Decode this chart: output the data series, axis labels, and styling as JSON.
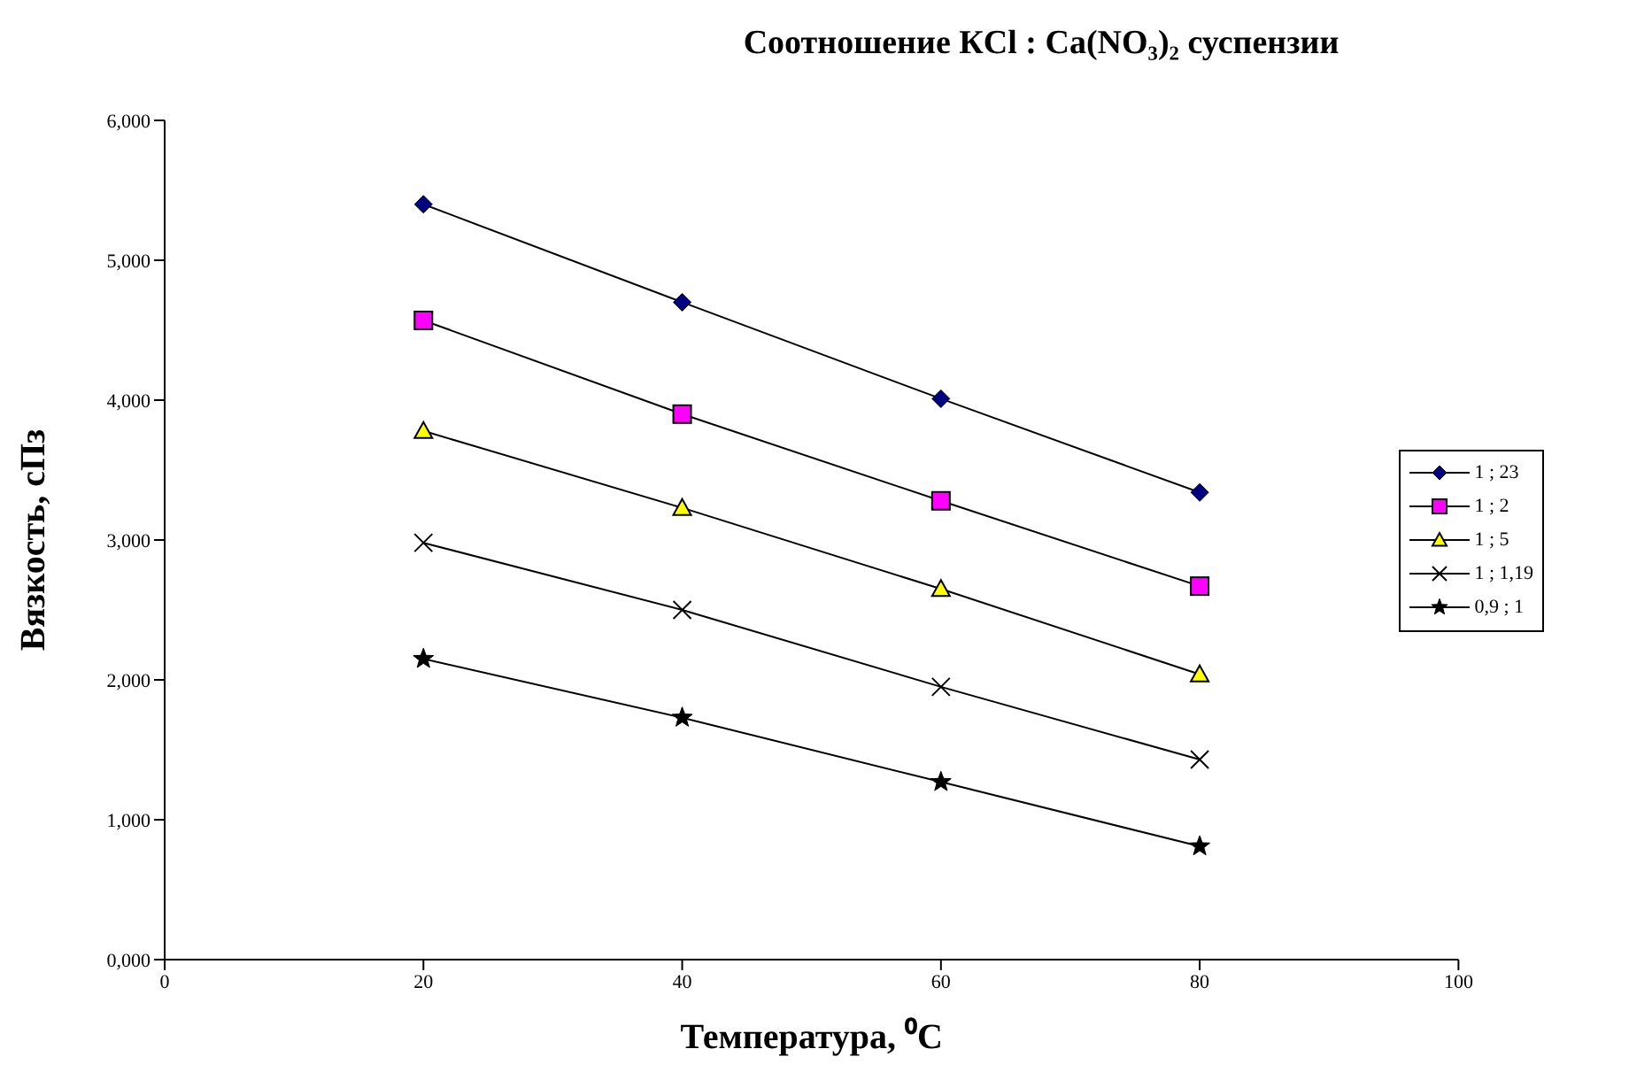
{
  "chart_data": {
    "type": "line",
    "title": "Соотношение КCl : Ca(NO₃)₂ суспензии",
    "xlabel": "Температура, ⁰C",
    "ylabel": "Вязкость, сПз",
    "x": [
      20,
      40,
      60,
      80
    ],
    "series": [
      {
        "name": "1 ; 23",
        "color": "#000080",
        "marker": "diamond",
        "values": [
          5.4,
          4.7,
          4.01,
          3.34
        ]
      },
      {
        "name": "1 ; 2",
        "color": "#ff00ff",
        "marker": "square",
        "values": [
          4.57,
          3.9,
          3.28,
          2.67
        ]
      },
      {
        "name": "1 ; 5",
        "color": "#ffff00",
        "marker": "triangle",
        "values": [
          3.78,
          3.23,
          2.65,
          2.04
        ]
      },
      {
        "name": "1 ; 1,19",
        "color": "#000000",
        "marker": "cross",
        "values": [
          2.98,
          2.5,
          1.95,
          1.43
        ]
      },
      {
        "name": "0,9 ; 1",
        "color": "#000000",
        "marker": "star",
        "values": [
          2.15,
          1.73,
          1.27,
          0.81
        ]
      }
    ],
    "xlim": [
      0,
      100
    ],
    "xticks": [
      0,
      20,
      40,
      60,
      80,
      100
    ],
    "ylim": [
      0,
      6
    ],
    "yticks": [
      {
        "value": 0,
        "label": "0,000"
      },
      {
        "value": 1,
        "label": "1,000"
      },
      {
        "value": 2,
        "label": "2,000"
      },
      {
        "value": 3,
        "label": "3,000"
      },
      {
        "value": 4,
        "label": "4,000"
      },
      {
        "value": 5,
        "label": "5,000"
      },
      {
        "value": 6,
        "label": "6,000"
      }
    ],
    "grid": false,
    "legend": "right",
    "line_style": "solid"
  }
}
